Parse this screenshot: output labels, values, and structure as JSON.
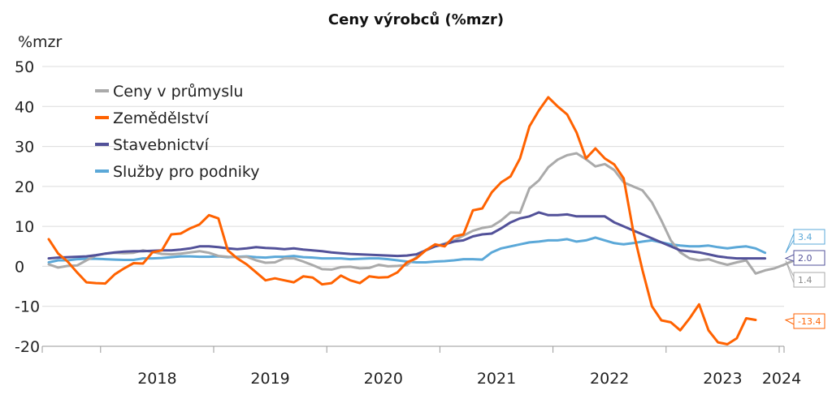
{
  "chart_data": {
    "type": "line",
    "title": "Ceny výrobců (%mzr)",
    "ylabel": "%mzr",
    "ylim": [
      -20,
      50
    ],
    "yticks": [
      -20,
      -10,
      0,
      10,
      20,
      30,
      40,
      50
    ],
    "xticks": [
      "2018",
      "2019",
      "2020",
      "2021",
      "2022",
      "2023",
      "2024"
    ],
    "grid": true,
    "legend": "top-left",
    "x_start": "2017-07",
    "x": [
      "2017-07",
      "2017-08",
      "2017-09",
      "2017-10",
      "2017-11",
      "2017-12",
      "2018-01",
      "2018-02",
      "2018-03",
      "2018-04",
      "2018-05",
      "2018-06",
      "2018-07",
      "2018-08",
      "2018-09",
      "2018-10",
      "2018-11",
      "2018-12",
      "2019-01",
      "2019-02",
      "2019-03",
      "2019-04",
      "2019-05",
      "2019-06",
      "2019-07",
      "2019-08",
      "2019-09",
      "2019-10",
      "2019-11",
      "2019-12",
      "2020-01",
      "2020-02",
      "2020-03",
      "2020-04",
      "2020-05",
      "2020-06",
      "2020-07",
      "2020-08",
      "2020-09",
      "2020-10",
      "2020-11",
      "2020-12",
      "2021-01",
      "2021-02",
      "2021-03",
      "2021-04",
      "2021-05",
      "2021-06",
      "2021-07",
      "2021-08",
      "2021-09",
      "2021-10",
      "2021-11",
      "2021-12",
      "2022-01",
      "2022-02",
      "2022-03",
      "2022-04",
      "2022-05",
      "2022-06",
      "2022-07",
      "2022-08",
      "2022-09",
      "2022-10",
      "2022-11",
      "2022-12",
      "2023-01",
      "2023-02",
      "2023-03",
      "2023-04",
      "2023-05",
      "2023-06",
      "2023-07",
      "2023-08",
      "2023-09",
      "2023-10",
      "2023-11",
      "2023-12",
      "2024-01",
      "2024-02",
      "2024-03",
      "2024-04"
    ],
    "series": [
      {
        "name": "Ceny v průmyslu",
        "color": "#aaaaaa",
        "end_label": "1.4",
        "values": [
          0.5,
          -0.3,
          0.1,
          0.2,
          1.5,
          2.7,
          3.2,
          3.4,
          3.3,
          3.4,
          4.0,
          3.6,
          3.1,
          3.0,
          3.2,
          3.5,
          3.8,
          3.4,
          2.6,
          2.4,
          2.3,
          2.4,
          1.5,
          0.9,
          1.0,
          2.0,
          2.0,
          1.2,
          0.3,
          -0.7,
          -0.8,
          -0.2,
          -0.1,
          -0.5,
          -0.4,
          0.4,
          0.0,
          0.1,
          0.3,
          2.3,
          4.1,
          5.0,
          5.7,
          6.5,
          7.7,
          8.9,
          9.6,
          10.0,
          11.5,
          13.5,
          13.4,
          19.5,
          21.5,
          24.8,
          26.7,
          27.8,
          28.3,
          26.8,
          25.0,
          25.6,
          24.1,
          21.0,
          20.0,
          19.0,
          16.0,
          11.5,
          6.5,
          3.5,
          2.0,
          1.5,
          1.8,
          1.0,
          0.4,
          1.0,
          1.5,
          -1.8,
          -1.0,
          -0.5,
          0.4,
          1.4,
          null,
          null
        ]
      },
      {
        "name": "Zemědělství",
        "color": "#ff6200",
        "end_label": "-13.4",
        "values": [
          6.8,
          3.2,
          1.2,
          -1.5,
          -4.0,
          -4.2,
          -4.3,
          -2.0,
          -0.5,
          0.8,
          0.7,
          3.5,
          4.0,
          8.0,
          8.2,
          9.5,
          10.5,
          12.8,
          12.0,
          4.0,
          2.0,
          0.5,
          -1.5,
          -3.5,
          -3.0,
          -3.5,
          -4.0,
          -2.5,
          -2.8,
          -4.5,
          -4.2,
          -2.3,
          -3.5,
          -4.2,
          -2.5,
          -2.8,
          -2.7,
          -1.5,
          1.0,
          2.0,
          4.0,
          5.5,
          5.0,
          7.5,
          8.0,
          14.0,
          14.5,
          18.5,
          21.0,
          22.5,
          27.0,
          35.0,
          39.0,
          42.3,
          40.0,
          38.0,
          33.5,
          27.0,
          29.5,
          27.0,
          25.5,
          22.0,
          9.0,
          -1.0,
          -10.0,
          -13.5,
          -14.0,
          -16.0,
          -13.0,
          -9.5,
          -16.0,
          -19.0,
          -19.5,
          -18.0,
          -13.0,
          -13.4,
          null,
          null,
          null,
          null,
          null,
          null
        ]
      },
      {
        "name": "Stavebnictví",
        "color": "#525199",
        "end_label": "2.0",
        "values": [
          2.0,
          2.2,
          2.3,
          2.4,
          2.5,
          2.8,
          3.2,
          3.5,
          3.7,
          3.8,
          3.8,
          3.9,
          4.0,
          4.0,
          4.2,
          4.5,
          5.0,
          5.0,
          4.8,
          4.5,
          4.3,
          4.5,
          4.8,
          4.6,
          4.5,
          4.3,
          4.5,
          4.2,
          4.0,
          3.8,
          3.5,
          3.3,
          3.1,
          3.0,
          2.9,
          2.8,
          2.7,
          2.6,
          2.7,
          3.0,
          4.0,
          5.0,
          5.5,
          6.2,
          6.5,
          7.5,
          8.0,
          8.2,
          9.5,
          11.0,
          12.0,
          12.5,
          13.5,
          12.8,
          12.8,
          13.0,
          12.5,
          12.5,
          12.5,
          12.5,
          11.0,
          10.0,
          9.0,
          8.0,
          7.0,
          6.0,
          5.0,
          4.0,
          3.8,
          3.5,
          3.0,
          2.5,
          2.2,
          2.0,
          2.0,
          2.0,
          2.0,
          null,
          null,
          null,
          null,
          null
        ]
      },
      {
        "name": "Služby pro podniky",
        "color": "#5ba8d8",
        "end_label": "3.4",
        "values": [
          1.0,
          1.5,
          1.5,
          1.8,
          1.9,
          1.9,
          1.8,
          1.7,
          1.6,
          1.6,
          2.0,
          2.0,
          2.1,
          2.3,
          2.5,
          2.5,
          2.4,
          2.4,
          2.5,
          2.3,
          2.4,
          2.5,
          2.3,
          2.2,
          2.4,
          2.4,
          2.6,
          2.3,
          2.2,
          2.0,
          2.0,
          2.0,
          1.8,
          1.9,
          2.0,
          2.0,
          1.8,
          1.5,
          1.2,
          1.0,
          1.0,
          1.2,
          1.3,
          1.5,
          1.8,
          1.8,
          1.7,
          3.5,
          4.5,
          5.0,
          5.5,
          6.0,
          6.2,
          6.5,
          6.5,
          6.8,
          6.2,
          6.5,
          7.2,
          6.5,
          5.8,
          5.5,
          5.8,
          6.2,
          6.5,
          6.0,
          5.5,
          5.2,
          5.0,
          5.0,
          5.2,
          4.8,
          4.5,
          4.8,
          5.0,
          4.5,
          3.4,
          null,
          null,
          null,
          null,
          null
        ]
      }
    ]
  }
}
